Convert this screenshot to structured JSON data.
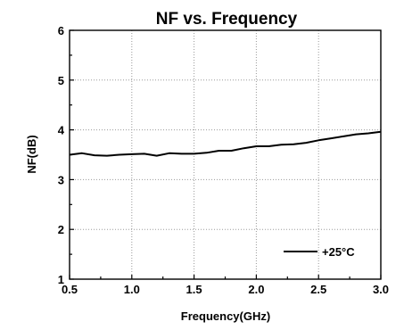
{
  "chart_data": {
    "type": "line",
    "title": "NF vs. Frequency",
    "xlabel": "Frequency(GHz)",
    "ylabel": "NF(dB)",
    "xlim": [
      0.5,
      3.0
    ],
    "ylim": [
      1,
      6
    ],
    "x_ticks": [
      "0.5",
      "1.0",
      "1.5",
      "2.0",
      "2.5",
      "3.0"
    ],
    "y_ticks": [
      "1",
      "2",
      "3",
      "4",
      "5",
      "6"
    ],
    "grid": true,
    "legend_position": "bottom-right",
    "series": [
      {
        "name": "+25°C",
        "color": "#000000",
        "x": [
          0.5,
          0.6,
          0.7,
          0.8,
          0.9,
          1.0,
          1.1,
          1.2,
          1.3,
          1.4,
          1.5,
          1.6,
          1.7,
          1.8,
          1.9,
          2.0,
          2.1,
          2.2,
          2.3,
          2.4,
          2.5,
          2.6,
          2.7,
          2.8,
          2.9,
          3.0
        ],
        "y": [
          3.5,
          3.53,
          3.49,
          3.48,
          3.5,
          3.51,
          3.52,
          3.48,
          3.53,
          3.52,
          3.52,
          3.54,
          3.58,
          3.58,
          3.63,
          3.67,
          3.67,
          3.7,
          3.71,
          3.74,
          3.79,
          3.83,
          3.87,
          3.91,
          3.93,
          3.96
        ]
      }
    ]
  }
}
